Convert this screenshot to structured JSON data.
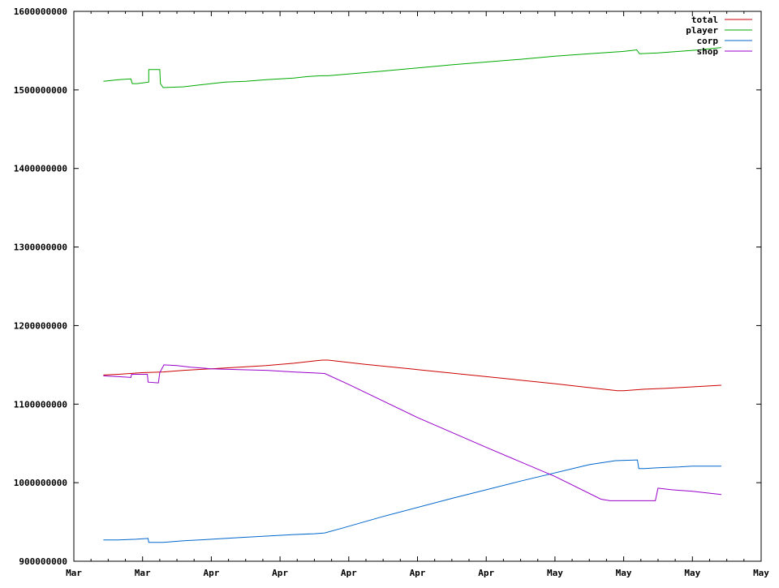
{
  "chart_data": {
    "type": "line",
    "title": "",
    "xlabel": "",
    "ylabel": "",
    "ylim": [
      900000000,
      1600000000
    ],
    "yticks": [
      {
        "value": 900000000,
        "label": "900000000"
      },
      {
        "value": 1000000000,
        "label": "1000000000"
      },
      {
        "value": 1100000000,
        "label": "1100000000"
      },
      {
        "value": 1200000000,
        "label": "1200000000"
      },
      {
        "value": 1300000000,
        "label": "1300000000"
      },
      {
        "value": 1400000000,
        "label": "1400000000"
      },
      {
        "value": 1500000000,
        "label": "1500000000"
      },
      {
        "value": 1600000000,
        "label": "1600000000"
      }
    ],
    "x_unit": "days",
    "xlim": [
      0,
      100
    ],
    "xticks": [
      {
        "value": 0,
        "label": "Mar"
      },
      {
        "value": 10,
        "label": "Mar"
      },
      {
        "value": 20,
        "label": "Apr"
      },
      {
        "value": 30,
        "label": "Apr"
      },
      {
        "value": 40,
        "label": "Apr"
      },
      {
        "value": 50,
        "label": "Apr"
      },
      {
        "value": 60,
        "label": "Apr"
      },
      {
        "value": 70,
        "label": "May"
      },
      {
        "value": 80,
        "label": "May"
      },
      {
        "value": 90,
        "label": "May"
      },
      {
        "value": 100,
        "label": "May"
      }
    ],
    "minor_ticks_per_major": 4,
    "grid": false,
    "legend_position": "top-right",
    "series": [
      {
        "name": "total",
        "color": "#cc0000",
        "points": [
          [
            4.3,
            1137000000
          ],
          [
            6.5,
            1138000000
          ],
          [
            9.9,
            1140000000
          ],
          [
            13,
            1141000000
          ],
          [
            16,
            1143000000
          ],
          [
            20,
            1145000000
          ],
          [
            24,
            1147000000
          ],
          [
            28,
            1149000000
          ],
          [
            32,
            1152000000
          ],
          [
            35,
            1155000000
          ],
          [
            36.2,
            1156000000
          ],
          [
            37,
            1156000000
          ],
          [
            42,
            1151000000
          ],
          [
            50,
            1144000000
          ],
          [
            60,
            1135000000
          ],
          [
            70,
            1126000000
          ],
          [
            76,
            1120000000
          ],
          [
            79.1,
            1117000000
          ],
          [
            80,
            1117000000
          ],
          [
            83,
            1119000000
          ],
          [
            86,
            1120000000
          ],
          [
            90,
            1122000000
          ],
          [
            94.2,
            1124000000
          ]
        ]
      },
      {
        "name": "player",
        "color": "#00aa00",
        "points": [
          [
            4.3,
            1511000000
          ],
          [
            6.5,
            1513000000
          ],
          [
            8.3,
            1514000000
          ],
          [
            8.5,
            1508000000
          ],
          [
            9.2,
            1508000000
          ],
          [
            10.9,
            1510000000
          ],
          [
            10.9,
            1526000000
          ],
          [
            12.5,
            1526000000
          ],
          [
            12.6,
            1508000000
          ],
          [
            13,
            1503000000
          ],
          [
            16,
            1504000000
          ],
          [
            18,
            1506000000
          ],
          [
            20,
            1508000000
          ],
          [
            22,
            1510000000
          ],
          [
            25,
            1511000000
          ],
          [
            28,
            1513000000
          ],
          [
            32,
            1515000000
          ],
          [
            34,
            1517000000
          ],
          [
            36,
            1518000000
          ],
          [
            37,
            1518000000
          ],
          [
            45,
            1524000000
          ],
          [
            55,
            1532000000
          ],
          [
            65,
            1539000000
          ],
          [
            70,
            1543000000
          ],
          [
            75,
            1546000000
          ],
          [
            80,
            1549000000
          ],
          [
            81.9,
            1551000000
          ],
          [
            82.3,
            1546000000
          ],
          [
            85,
            1547000000
          ],
          [
            88,
            1549000000
          ],
          [
            91,
            1551000000
          ],
          [
            94.2,
            1554000000
          ]
        ]
      },
      {
        "name": "corp",
        "color": "#0066cc",
        "points": [
          [
            4.3,
            927000000
          ],
          [
            6.5,
            927000000
          ],
          [
            9,
            928000000
          ],
          [
            10.8,
            929000000
          ],
          [
            10.9,
            924000000
          ],
          [
            13,
            924000000
          ],
          [
            16,
            926000000
          ],
          [
            20,
            928000000
          ],
          [
            24,
            930000000
          ],
          [
            28,
            932000000
          ],
          [
            32,
            934000000
          ],
          [
            35,
            935000000
          ],
          [
            36.5,
            936000000
          ],
          [
            39,
            942000000
          ],
          [
            45,
            957000000
          ],
          [
            55,
            980000000
          ],
          [
            65,
            1002000000
          ],
          [
            75,
            1023000000
          ],
          [
            78.8,
            1028000000
          ],
          [
            82,
            1029000000
          ],
          [
            82.2,
            1018000000
          ],
          [
            83,
            1018000000
          ],
          [
            85,
            1019000000
          ],
          [
            88,
            1020000000
          ],
          [
            90,
            1021000000
          ],
          [
            94.2,
            1021000000
          ]
        ]
      },
      {
        "name": "shop",
        "color": "#9900cc",
        "points": [
          [
            4.3,
            1136000000
          ],
          [
            6.5,
            1135000000
          ],
          [
            8.3,
            1134000000
          ],
          [
            8.4,
            1138000000
          ],
          [
            10.7,
            1138000000
          ],
          [
            10.8,
            1128000000
          ],
          [
            12.3,
            1127000000
          ],
          [
            12.5,
            1140000000
          ],
          [
            13.1,
            1150000000
          ],
          [
            15,
            1149000000
          ],
          [
            17,
            1147000000
          ],
          [
            20,
            1145000000
          ],
          [
            24,
            1144000000
          ],
          [
            28,
            1143000000
          ],
          [
            32,
            1141000000
          ],
          [
            36.5,
            1139000000
          ],
          [
            40,
            1125000000
          ],
          [
            50,
            1083000000
          ],
          [
            60,
            1045000000
          ],
          [
            70,
            1008000000
          ],
          [
            76.7,
            979000000
          ],
          [
            78,
            977000000
          ],
          [
            80,
            977000000
          ],
          [
            84.6,
            977000000
          ],
          [
            85,
            993000000
          ],
          [
            87,
            991000000
          ],
          [
            90,
            989000000
          ],
          [
            94.2,
            985000000
          ]
        ]
      }
    ]
  }
}
